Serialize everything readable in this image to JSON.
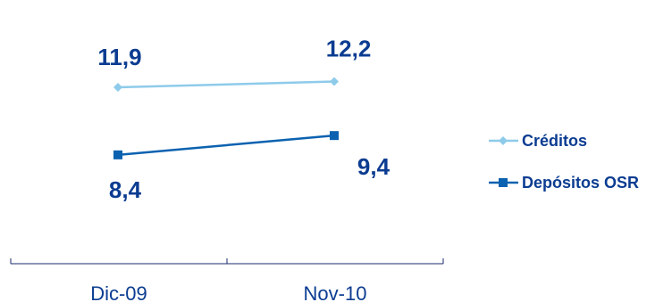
{
  "chart_data": {
    "type": "line",
    "categories": [
      "Dic-09",
      "Nov-10"
    ],
    "series": [
      {
        "name": "Créditos",
        "values": [
          11.9,
          12.2
        ],
        "labels": [
          "11,9",
          "12,2"
        ],
        "color": "#8ecbea",
        "marker": "diamond"
      },
      {
        "name": "Depósitos OSR",
        "values": [
          8.4,
          9.4
        ],
        "labels": [
          "8,4",
          "9,4"
        ],
        "color": "#0b62b0",
        "marker": "square"
      }
    ],
    "title": "",
    "xlabel": "",
    "ylabel": "",
    "legend_position": "right",
    "grid": false,
    "label_color": "#0b3c91",
    "axis_color": "#1a2a6c"
  }
}
